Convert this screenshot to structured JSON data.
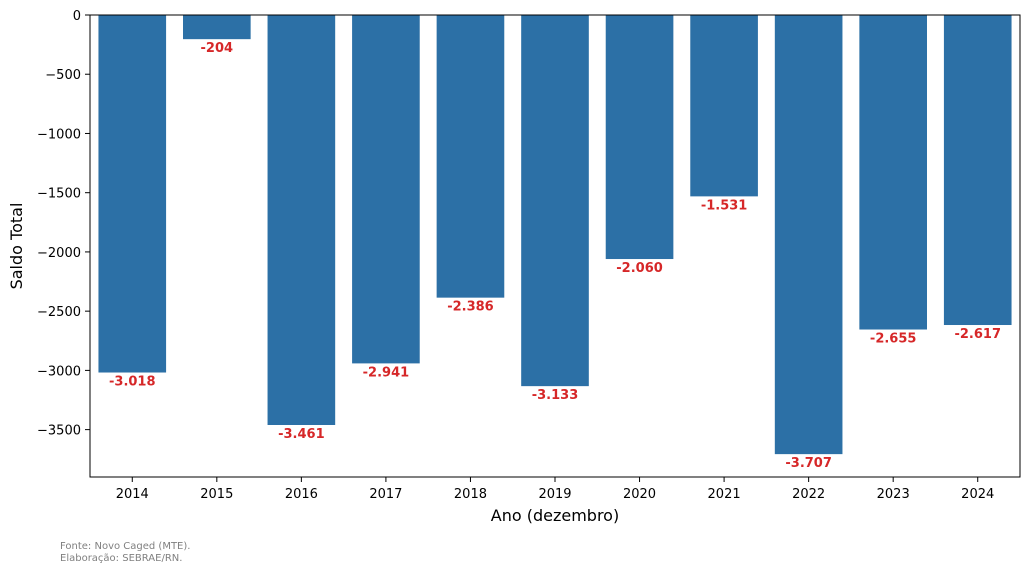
{
  "chart_data": {
    "type": "bar",
    "categories": [
      "2014",
      "2015",
      "2016",
      "2017",
      "2018",
      "2019",
      "2020",
      "2021",
      "2022",
      "2023",
      "2024"
    ],
    "values": [
      -3018,
      -204,
      -3461,
      -2941,
      -2386,
      -3133,
      -2060,
      -1531,
      -3707,
      -2655,
      -2617
    ],
    "data_labels": [
      "-3.018",
      "-204",
      "-3.461",
      "-2.941",
      "-2.386",
      "-3.133",
      "-2.060",
      "-1.531",
      "-3.707",
      "-2.655",
      "-2.617"
    ],
    "xlabel": "Ano (dezembro)",
    "ylabel": "Saldo Total",
    "ylim": [
      -3900,
      0
    ],
    "yticks": [
      0,
      -500,
      -1000,
      -1500,
      -2000,
      -2500,
      -3000,
      -3500
    ],
    "ytick_labels": [
      "0",
      "−500",
      "−1000",
      "−1500",
      "−2000",
      "−2500",
      "−3000",
      "−3500"
    ],
    "grid": false,
    "bar_color": "#2c70a6",
    "label_color": "#d62728"
  },
  "footer": {
    "source": "Fonte: Novo Caged (MTE).",
    "elaboration": "Elaboração: SEBRAE/RN."
  }
}
